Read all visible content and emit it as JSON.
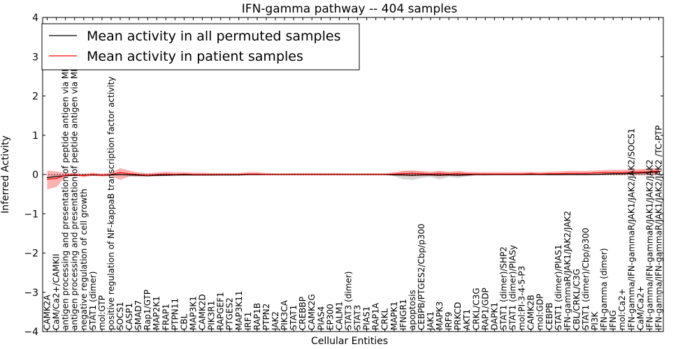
{
  "colors": {
    "background": "#ffffff",
    "axis": "#000000",
    "permuted_mean": "#000000",
    "permuted_band": "#b8b8b8",
    "patient_mean": "#ff0000",
    "patient_band": "#ff5555"
  },
  "chart_data": {
    "type": "line",
    "title": "IFN-gamma pathway -- 404 samples",
    "xlabel": "Cellular Entities",
    "ylabel": "Inferred Activity",
    "ylim": [
      -4,
      4
    ],
    "yticks": [
      -4,
      -3,
      -2,
      -1,
      0,
      1,
      2,
      3,
      4
    ],
    "ytick_labels": [
      "−4",
      "−3",
      "−2",
      "−1",
      "0",
      "1",
      "2",
      "3",
      "4"
    ],
    "legend_position": "top-left",
    "categories": [
      "CAMK2A",
      "CaM/Ca2+/CAMKII",
      "antigen processing and presentation of peptide antigen via MHC class I",
      "antigen processing and presentation of peptide antigen via MHC class II",
      "negative regulation of cell growth",
      "STAT1 (dimer)",
      "mol:GTP",
      "positive regulation of NF-kappaB transcription factor activity",
      "SOCS1",
      "CASP1",
      "SMAD7",
      "Rap1/GTP",
      "MAP2K1",
      "FRAP1",
      "PTPN11",
      "CBL",
      "MAP3K1",
      "CAMK2D",
      "PIK3R1",
      "RAPGEF1",
      "PTGES2",
      "MAP3K11",
      "IRF1",
      "RAP1B",
      "PTPN2",
      "JAK2",
      "PIK3CA",
      "STAT1",
      "CREBBP",
      "CAMK2G",
      "PIAS4",
      "EP300",
      "CALM1",
      "STAT3 (dimer)",
      "STAT3",
      "PIAS1",
      "RAP1A",
      "CRKL",
      "MAPK1",
      "IFNGR1",
      "apoptosis",
      "CEBPB/PTGES2/Cbp/p300",
      "JAK1",
      "MAPK3",
      "IRF9",
      "PRKCD",
      "AKT1",
      "CRKL/C3G",
      "RAP1/GDP",
      "DAPK1",
      "STAT1 (dimer)/SHP2",
      "STAT1 (dimer)/PIASy",
      "mol:PI-3-4-5-P3",
      "CAMK2B",
      "mol:GDP",
      "CEBPB",
      "STAT1 (dimer)/PIAS1",
      "IFN-gammaR/JAK1/JAK2/JAK2",
      "CBL/CRKL/C3G",
      "STAT1 (dimer)/Cbp/p300",
      "PI3K",
      "IFN-gamma (dimer)",
      "IFNG",
      "mol:Ca2+",
      "IFN-gamma/IFN-gammaR/JAK1/JAK2/JAK2/SOCS1",
      "CaM/Ca2+",
      "IFN-gamma/IFN-gammaR/JAK1/JAK2/JAK2",
      "IFN-gamma/IFN-gammaR/JAK1/JAK2/JAK2   /TC-PTP"
    ],
    "series": [
      {
        "name": "Mean activity in all permuted samples",
        "color": "#000000",
        "values": [
          -0.08,
          -0.05,
          -0.03,
          -0.02,
          -0.02,
          -0.01,
          -0.02,
          -0.01,
          0.0,
          -0.01,
          -0.02,
          -0.03,
          -0.02,
          -0.02,
          -0.01,
          -0.01,
          -0.01,
          -0.01,
          -0.01,
          -0.01,
          -0.01,
          -0.01,
          0.0,
          0.0,
          0.0,
          0.0,
          0.0,
          0.0,
          0.0,
          0.0,
          0.0,
          0.0,
          0.0,
          0.0,
          0.0,
          0.0,
          0.0,
          0.0,
          -0.01,
          -0.01,
          -0.02,
          -0.01,
          -0.01,
          -0.02,
          -0.01,
          -0.02,
          -0.01,
          0.0,
          0.0,
          0.0,
          0.0,
          0.0,
          0.0,
          0.0,
          0.0,
          0.0,
          0.0,
          0.0,
          0.0,
          0.0,
          0.0,
          0.01,
          0.02,
          0.02,
          0.03,
          0.04,
          0.05,
          0.07
        ],
        "band_lower": [
          -0.13,
          -0.09,
          -0.06,
          -0.04,
          -0.03,
          -0.03,
          -0.04,
          -0.03,
          -0.04,
          -0.05,
          -0.06,
          -0.06,
          -0.05,
          -0.04,
          -0.04,
          -0.03,
          -0.03,
          -0.03,
          -0.03,
          -0.03,
          -0.03,
          -0.03,
          -0.02,
          -0.02,
          -0.02,
          -0.02,
          -0.02,
          -0.02,
          -0.02,
          -0.02,
          -0.02,
          -0.02,
          -0.02,
          -0.02,
          -0.02,
          -0.02,
          -0.02,
          -0.02,
          -0.04,
          -0.12,
          -0.14,
          -0.09,
          -0.06,
          -0.13,
          -0.06,
          -0.09,
          -0.05,
          -0.03,
          -0.03,
          -0.02,
          -0.02,
          -0.02,
          -0.02,
          -0.02,
          -0.02,
          -0.03,
          -0.03,
          -0.02,
          -0.02,
          -0.02,
          -0.02,
          -0.02,
          -0.02,
          -0.02,
          -0.02,
          -0.02,
          -0.02,
          -0.02
        ],
        "band_upper": [
          -0.03,
          -0.01,
          0.0,
          0.0,
          0.0,
          0.01,
          0.0,
          0.01,
          0.04,
          0.02,
          0.02,
          0.0,
          0.01,
          0.0,
          0.02,
          0.01,
          0.01,
          0.01,
          0.01,
          0.01,
          0.01,
          0.01,
          0.02,
          0.02,
          0.02,
          0.02,
          0.02,
          0.02,
          0.02,
          0.02,
          0.02,
          0.02,
          0.02,
          0.02,
          0.02,
          0.02,
          0.02,
          0.02,
          0.02,
          0.09,
          0.1,
          0.07,
          0.04,
          0.09,
          0.04,
          0.06,
          0.03,
          0.03,
          0.03,
          0.02,
          0.02,
          0.02,
          0.02,
          0.02,
          0.02,
          0.03,
          0.03,
          0.02,
          0.02,
          0.02,
          0.02,
          0.04,
          0.06,
          0.06,
          0.08,
          0.1,
          0.12,
          0.15
        ]
      },
      {
        "name": "Mean activity in patient samples",
        "color": "#ff0000",
        "values": [
          -0.12,
          -0.1,
          -0.02,
          0.0,
          -0.03,
          0.0,
          -0.02,
          0.0,
          0.05,
          0.02,
          0.0,
          -0.02,
          0.0,
          0.01,
          0.0,
          0.01,
          0.0,
          0.0,
          0.0,
          0.0,
          0.0,
          0.0,
          0.01,
          0.01,
          0.0,
          0.0,
          0.0,
          0.0,
          0.0,
          0.0,
          0.0,
          0.0,
          0.0,
          0.0,
          0.0,
          0.0,
          0.0,
          0.0,
          0.01,
          0.02,
          0.03,
          0.02,
          0.01,
          0.02,
          0.01,
          0.02,
          0.01,
          0.01,
          0.01,
          0.01,
          0.01,
          0.01,
          0.01,
          0.02,
          0.01,
          0.02,
          0.02,
          0.03,
          0.03,
          0.03,
          0.04,
          0.05,
          0.05,
          0.05,
          0.06,
          0.06,
          0.07,
          0.09
        ],
        "band_lower": [
          -0.38,
          -0.32,
          -0.06,
          -0.03,
          -0.07,
          -0.03,
          -0.05,
          -0.04,
          -0.14,
          -0.05,
          -0.04,
          -0.05,
          -0.04,
          -0.03,
          -0.03,
          -0.02,
          -0.03,
          -0.03,
          -0.03,
          -0.02,
          -0.02,
          -0.02,
          -0.02,
          -0.02,
          -0.02,
          -0.02,
          -0.02,
          -0.02,
          -0.02,
          -0.02,
          -0.02,
          -0.02,
          -0.02,
          -0.02,
          -0.02,
          -0.02,
          -0.02,
          -0.02,
          -0.02,
          -0.04,
          -0.05,
          -0.04,
          -0.03,
          -0.05,
          -0.03,
          -0.04,
          -0.03,
          -0.02,
          -0.02,
          -0.02,
          -0.02,
          -0.02,
          -0.02,
          -0.01,
          -0.02,
          -0.01,
          -0.01,
          -0.02,
          -0.02,
          -0.02,
          -0.01,
          -0.01,
          -0.01,
          -0.01,
          -0.01,
          -0.01,
          -0.01,
          0.0
        ],
        "band_upper": [
          0.1,
          0.08,
          0.04,
          0.03,
          0.02,
          0.05,
          0.02,
          0.05,
          0.16,
          0.1,
          0.05,
          0.03,
          0.05,
          0.07,
          0.06,
          0.06,
          0.05,
          0.05,
          0.04,
          0.04,
          0.04,
          0.04,
          0.06,
          0.06,
          0.04,
          0.03,
          0.03,
          0.04,
          0.04,
          0.04,
          0.04,
          0.04,
          0.04,
          0.03,
          0.03,
          0.03,
          0.03,
          0.03,
          0.06,
          0.09,
          0.1,
          0.09,
          0.07,
          0.09,
          0.07,
          0.09,
          0.07,
          0.06,
          0.06,
          0.06,
          0.06,
          0.06,
          0.06,
          0.07,
          0.06,
          0.07,
          0.08,
          0.09,
          0.09,
          0.09,
          0.1,
          0.11,
          0.12,
          0.12,
          0.13,
          0.14,
          0.15,
          0.16
        ]
      }
    ]
  }
}
